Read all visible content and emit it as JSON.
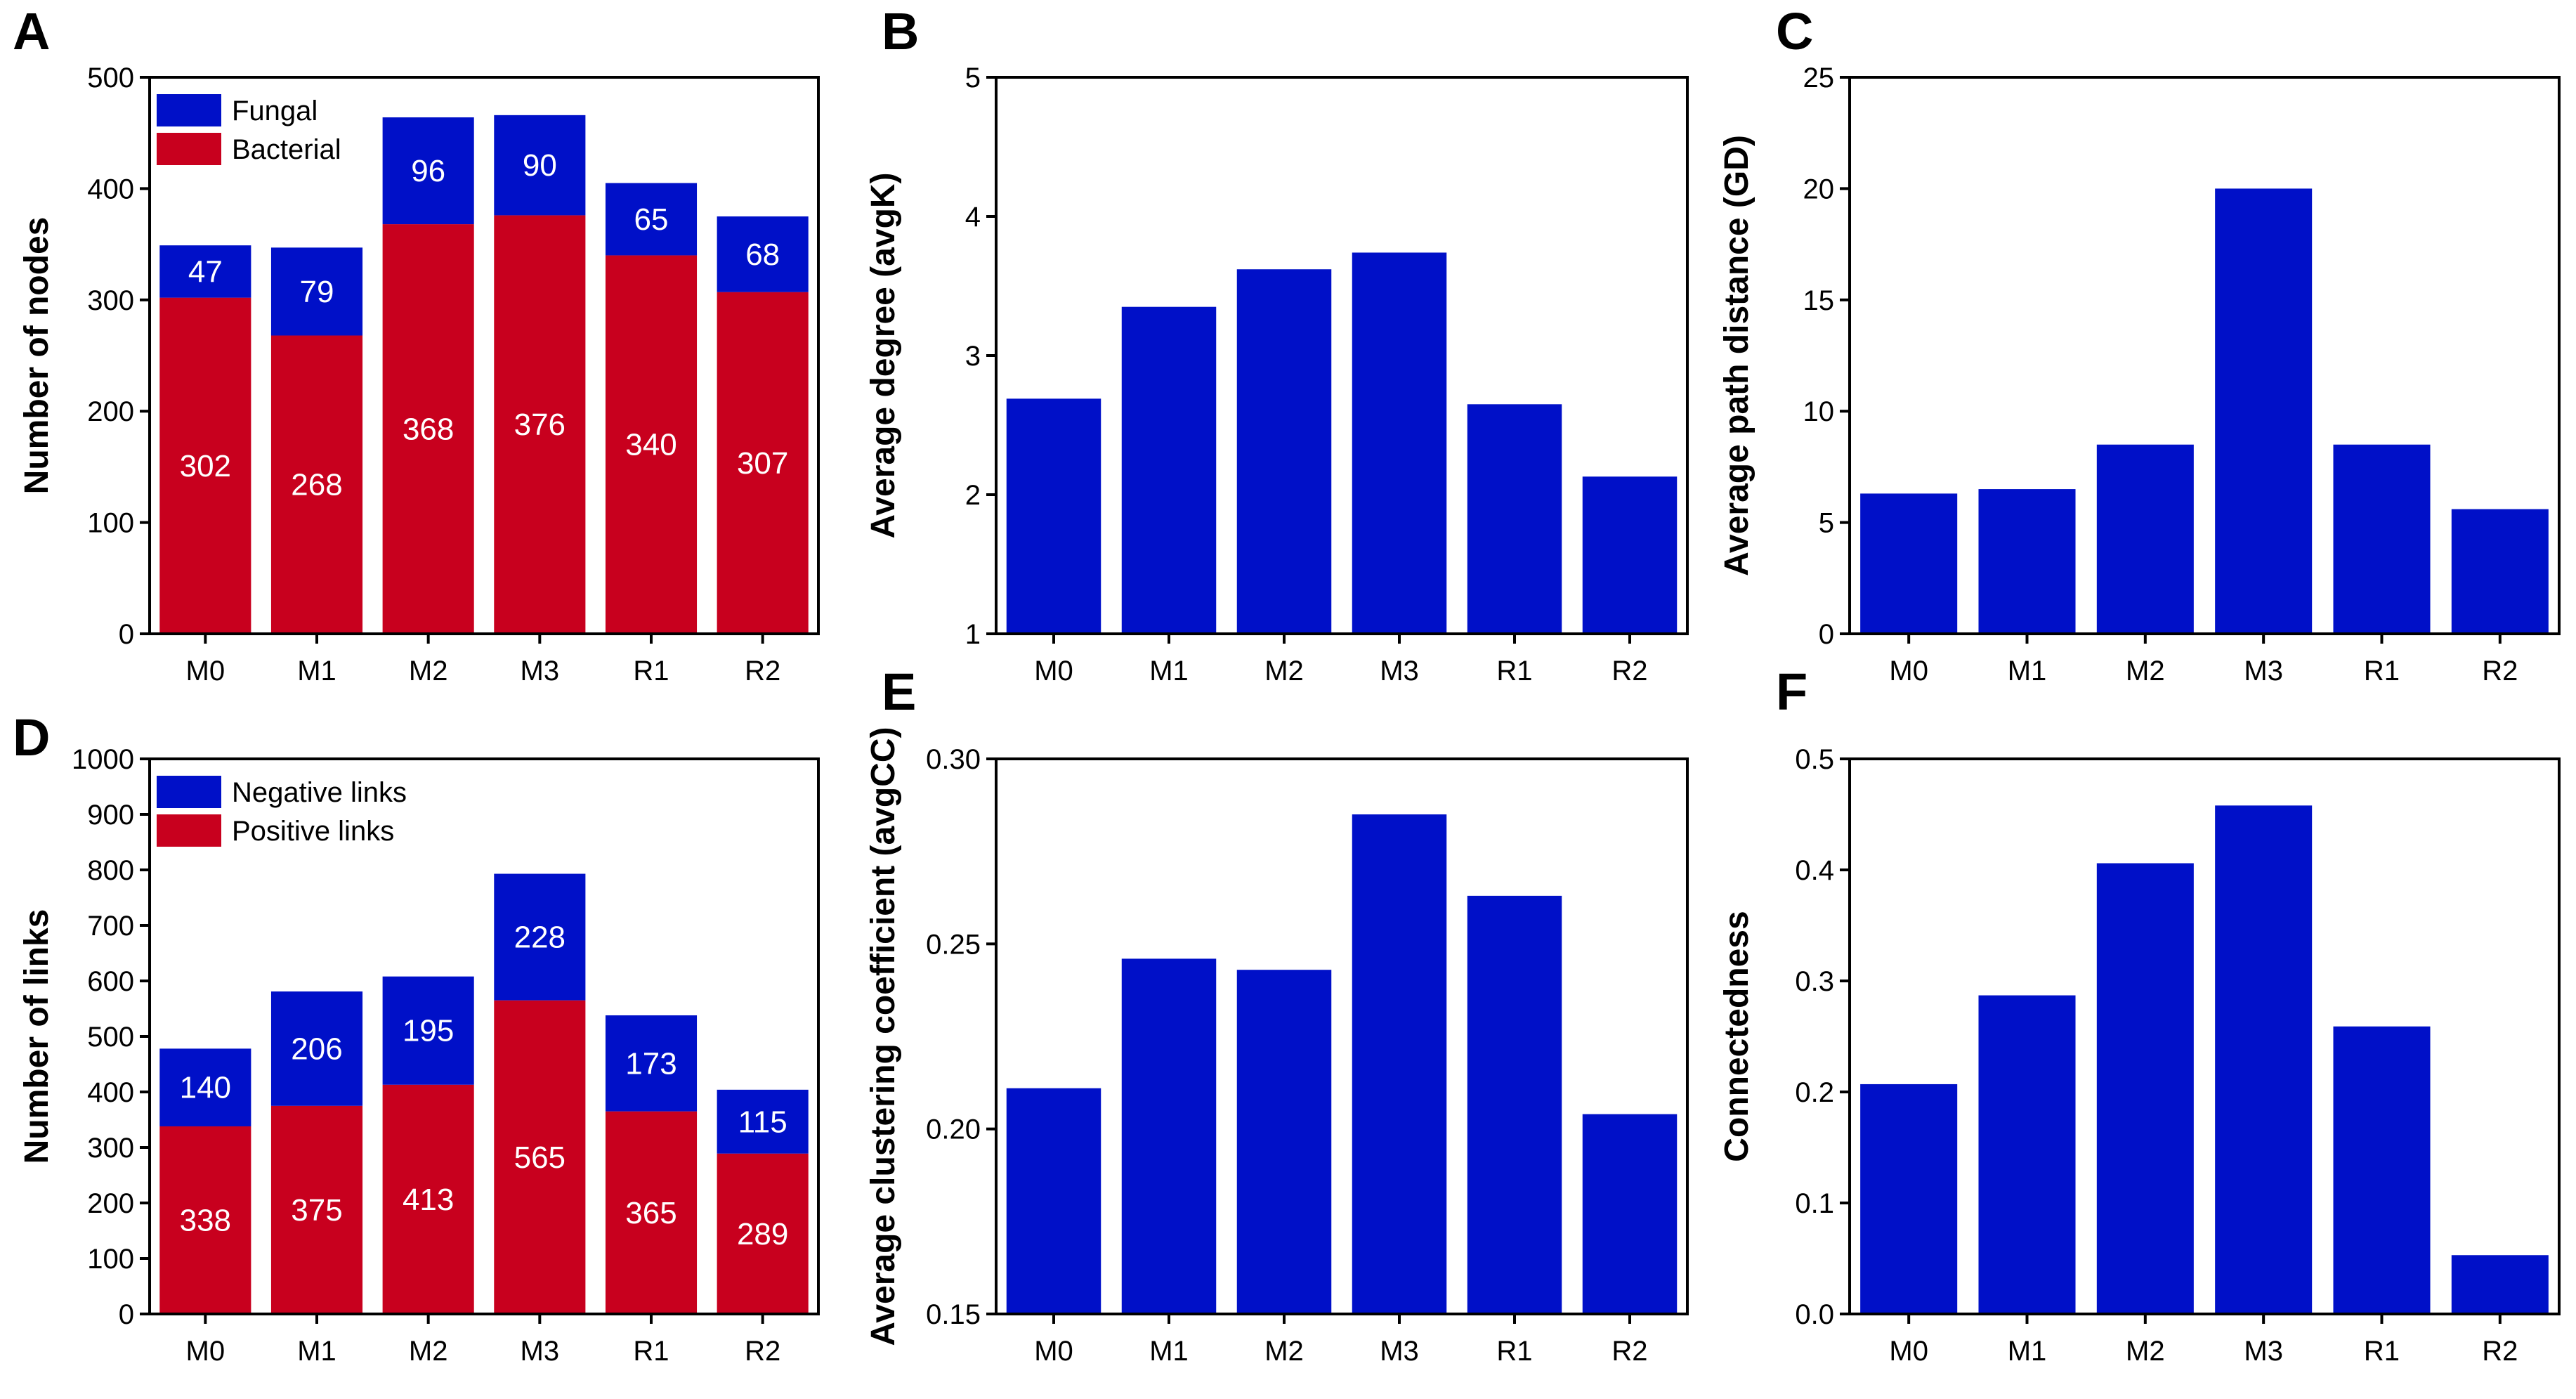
{
  "colors": {
    "blue": "#0010c8",
    "red": "#c8001e",
    "axis": "#000000"
  },
  "chart_data": [
    {
      "id": "A",
      "panel_letter": "A",
      "type": "bar",
      "stacked": true,
      "categories": [
        "M0",
        "M1",
        "M2",
        "M3",
        "R1",
        "R2"
      ],
      "ylabel": "Number of nodes",
      "xlabel": "",
      "ylim": [
        0,
        500
      ],
      "yticks": [
        0,
        100,
        200,
        300,
        400,
        500
      ],
      "tick_decimals": 0,
      "legend_position": "top-left",
      "series": [
        {
          "name": "Bacterial",
          "color_key": "red",
          "values": [
            302,
            268,
            368,
            376,
            340,
            307
          ],
          "labels": [
            "302",
            "268",
            "368",
            "376",
            "340",
            "307"
          ]
        },
        {
          "name": "Fungal",
          "color_key": "blue",
          "values": [
            47,
            79,
            96,
            90,
            65,
            68
          ],
          "labels": [
            "47",
            "79",
            "96",
            "90",
            "65",
            "68"
          ]
        }
      ]
    },
    {
      "id": "B",
      "panel_letter": "B",
      "type": "bar",
      "categories": [
        "M0",
        "M1",
        "M2",
        "M3",
        "R1",
        "R2"
      ],
      "ylabel": "Average degree (avgK)",
      "xlabel": "",
      "ylim": [
        1,
        5
      ],
      "yticks": [
        1,
        2,
        3,
        4,
        5
      ],
      "tick_decimals": 0,
      "values": [
        2.69,
        3.35,
        3.62,
        3.74,
        2.65,
        2.13
      ]
    },
    {
      "id": "C",
      "panel_letter": "C",
      "type": "bar",
      "categories": [
        "M0",
        "M1",
        "M2",
        "M3",
        "R1",
        "R2"
      ],
      "ylabel": "Average path distance (GD)",
      "xlabel": "",
      "ylim": [
        0,
        25
      ],
      "yticks": [
        0,
        5,
        10,
        15,
        20,
        25
      ],
      "tick_decimals": 0,
      "values": [
        6.3,
        6.5,
        8.5,
        20.0,
        8.5,
        5.6
      ]
    },
    {
      "id": "D",
      "panel_letter": "D",
      "type": "bar",
      "stacked": true,
      "categories": [
        "M0",
        "M1",
        "M2",
        "M3",
        "R1",
        "R2"
      ],
      "ylabel": "Number of links",
      "xlabel": "",
      "ylim": [
        0,
        1000
      ],
      "yticks": [
        0,
        100,
        200,
        300,
        400,
        500,
        600,
        700,
        800,
        900,
        1000
      ],
      "tick_decimals": 0,
      "legend_position": "top-left",
      "series": [
        {
          "name": "Positive links",
          "color_key": "red",
          "values": [
            338,
            375,
            413,
            565,
            365,
            289
          ],
          "labels": [
            "338",
            "375",
            "413",
            "565",
            "365",
            "289"
          ]
        },
        {
          "name": "Negative links",
          "color_key": "blue",
          "values": [
            140,
            206,
            195,
            228,
            173,
            115
          ],
          "labels": [
            "140",
            "206",
            "195",
            "228",
            "173",
            "115"
          ]
        }
      ]
    },
    {
      "id": "E",
      "panel_letter": "E",
      "type": "bar",
      "categories": [
        "M0",
        "M1",
        "M2",
        "M3",
        "R1",
        "R2"
      ],
      "ylabel": "Average clustering coefficient (avgCC)",
      "xlabel": "",
      "ylim": [
        0.15,
        0.3
      ],
      "yticks": [
        0.15,
        0.2,
        0.25,
        0.3
      ],
      "tick_decimals": 2,
      "values": [
        0.211,
        0.246,
        0.243,
        0.285,
        0.263,
        0.204
      ]
    },
    {
      "id": "F",
      "panel_letter": "F",
      "type": "bar",
      "categories": [
        "M0",
        "M1",
        "M2",
        "M3",
        "R1",
        "R2"
      ],
      "ylabel": "Connectedness",
      "xlabel": "",
      "ylim": [
        0,
        0.5
      ],
      "yticks": [
        0,
        0.1,
        0.2,
        0.3,
        0.4,
        0.5
      ],
      "tick_decimals": 1,
      "values": [
        0.207,
        0.287,
        0.406,
        0.458,
        0.259,
        0.053
      ]
    }
  ]
}
